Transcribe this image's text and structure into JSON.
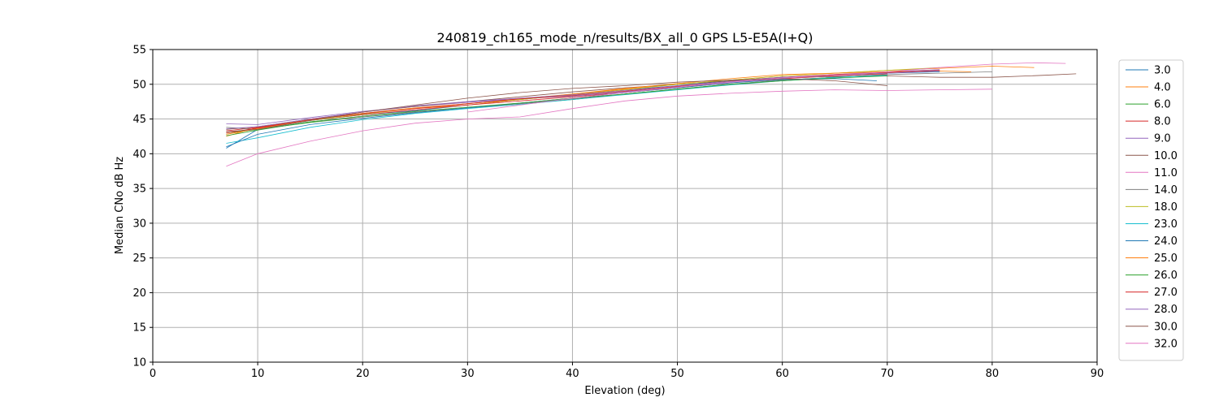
{
  "chart_data": {
    "type": "line",
    "title": "240819_ch165_mode_n/results/BX_all_0 GPS L5-E5A(I+Q)",
    "xlabel": "Elevation (deg)",
    "ylabel": "Median CNo dB Hz",
    "xlim": [
      0,
      90
    ],
    "ylim": [
      10,
      55
    ],
    "xticks": [
      0,
      10,
      20,
      30,
      40,
      50,
      60,
      70,
      80,
      90
    ],
    "yticks": [
      10,
      15,
      20,
      25,
      30,
      35,
      40,
      45,
      50,
      55
    ],
    "grid": true,
    "legend_position": "outside-right",
    "series": [
      {
        "name": "3.0",
        "color": "#1f77b4",
        "x": [
          7,
          10,
          15,
          20,
          25,
          30,
          35,
          40,
          45,
          50,
          55,
          60,
          65,
          70,
          75
        ],
        "y": [
          40.8,
          43.5,
          44.8,
          45.6,
          46.2,
          47.0,
          47.8,
          48.5,
          49.2,
          49.8,
          50.5,
          51.0,
          51.3,
          51.6,
          51.8
        ]
      },
      {
        "name": "4.0",
        "color": "#ff7f0e",
        "x": [
          7,
          10,
          15,
          20,
          25,
          30,
          35,
          40,
          45,
          50,
          55,
          60,
          65,
          70,
          75,
          80,
          84
        ],
        "y": [
          42.5,
          43.8,
          45.0,
          45.8,
          46.5,
          47.0,
          47.8,
          48.6,
          49.3,
          50.0,
          50.6,
          51.2,
          51.6,
          52.0,
          52.3,
          52.6,
          52.4
        ]
      },
      {
        "name": "6.0",
        "color": "#2ca02c",
        "x": [
          7,
          10,
          15,
          20,
          25,
          30,
          35,
          40,
          45,
          50,
          55,
          60,
          65,
          70
        ],
        "y": [
          43.0,
          43.5,
          44.5,
          45.3,
          46.0,
          46.6,
          47.2,
          47.8,
          48.6,
          49.3,
          50.0,
          50.6,
          51.0,
          51.4
        ]
      },
      {
        "name": "8.0",
        "color": "#d62728",
        "x": [
          7,
          10,
          15,
          20,
          25,
          30,
          35,
          40,
          45,
          50,
          55,
          60,
          65,
          70
        ],
        "y": [
          43.3,
          43.8,
          44.8,
          45.6,
          46.3,
          47.0,
          47.6,
          48.2,
          48.8,
          49.5,
          50.2,
          50.8,
          51.2,
          51.5
        ]
      },
      {
        "name": "9.0",
        "color": "#9467bd",
        "x": [
          7,
          10,
          15,
          20,
          25,
          30,
          35,
          40,
          45,
          50,
          55,
          60,
          65,
          70,
          75
        ],
        "y": [
          44.3,
          44.2,
          45.2,
          46.1,
          46.8,
          47.4,
          47.9,
          48.3,
          48.9,
          49.6,
          50.2,
          50.9,
          51.4,
          51.8,
          52.1
        ]
      },
      {
        "name": "10.0",
        "color": "#8c564b",
        "x": [
          7,
          10,
          15,
          20,
          25,
          30,
          35,
          40,
          45,
          50,
          55,
          60,
          65,
          70,
          75,
          80,
          85,
          88
        ],
        "y": [
          43.5,
          43.9,
          45.0,
          46.0,
          46.8,
          47.5,
          48.2,
          48.9,
          49.5,
          50.0,
          50.5,
          51.0,
          51.1,
          51.2,
          51.0,
          51.0,
          51.3,
          51.5
        ]
      },
      {
        "name": "11.0",
        "color": "#e377c2",
        "x": [
          7,
          10,
          15,
          20,
          25,
          30,
          35,
          40,
          45,
          50,
          55,
          60,
          65,
          70,
          75,
          80
        ],
        "y": [
          38.2,
          40.0,
          41.8,
          43.3,
          44.4,
          45.0,
          45.3,
          46.5,
          47.6,
          48.3,
          48.7,
          49.0,
          49.2,
          49.1,
          49.2,
          49.3
        ]
      },
      {
        "name": "14.0",
        "color": "#7f7f7f",
        "x": [
          7,
          10,
          15,
          20,
          25,
          30,
          35,
          40,
          45,
          50,
          55,
          60,
          65,
          70,
          75,
          80
        ],
        "y": [
          43.8,
          43.5,
          44.6,
          45.3,
          46.0,
          46.6,
          47.2,
          47.9,
          48.6,
          49.3,
          50.0,
          50.6,
          51.0,
          51.4,
          51.6,
          51.8
        ]
      },
      {
        "name": "18.0",
        "color": "#bcbd22",
        "x": [
          7,
          10,
          15,
          20,
          25,
          30,
          35,
          40,
          45,
          50,
          55,
          60,
          65,
          70,
          75
        ],
        "y": [
          42.8,
          43.6,
          44.8,
          45.7,
          46.5,
          47.2,
          47.8,
          48.5,
          49.2,
          50.0,
          50.6,
          51.2,
          51.6,
          52.0,
          52.4
        ]
      },
      {
        "name": "23.0",
        "color": "#17becf",
        "x": [
          7,
          10,
          15,
          20,
          25,
          30,
          35,
          40,
          45,
          50,
          55,
          60,
          65,
          70
        ],
        "y": [
          41.5,
          42.3,
          43.8,
          44.9,
          45.8,
          46.5,
          47.1,
          47.8,
          48.5,
          49.2,
          49.9,
          50.5,
          51.0,
          51.3
        ]
      },
      {
        "name": "24.0",
        "color": "#1f77b4",
        "x": [
          7,
          10,
          15,
          20,
          25,
          30,
          35,
          40,
          45,
          50,
          55,
          60,
          65,
          69
        ],
        "y": [
          41.0,
          42.8,
          44.2,
          45.1,
          45.9,
          46.6,
          47.3,
          48.0,
          48.8,
          49.5,
          50.2,
          50.7,
          50.8,
          50.5
        ]
      },
      {
        "name": "25.0",
        "color": "#ff7f0e",
        "x": [
          7,
          10,
          15,
          20,
          25,
          30,
          35,
          40,
          45,
          50,
          55,
          60,
          65,
          70,
          75,
          78
        ],
        "y": [
          42.8,
          43.6,
          44.9,
          45.8,
          46.6,
          47.2,
          47.9,
          48.6,
          49.4,
          50.1,
          50.8,
          51.4,
          51.6,
          51.8,
          51.9,
          51.8
        ]
      },
      {
        "name": "26.0",
        "color": "#2ca02c",
        "x": [
          7,
          10,
          15,
          20,
          25,
          30,
          35,
          40,
          45,
          50,
          55,
          60,
          65,
          70
        ],
        "y": [
          42.6,
          43.4,
          44.6,
          45.4,
          46.1,
          46.7,
          47.3,
          48.0,
          48.6,
          49.3,
          50.0,
          50.5,
          50.9,
          51.2
        ]
      },
      {
        "name": "27.0",
        "color": "#d62728",
        "x": [
          7,
          10,
          15,
          20,
          25,
          30,
          35,
          40,
          45,
          50,
          55,
          60,
          65,
          70,
          75
        ],
        "y": [
          43.0,
          43.7,
          44.9,
          45.8,
          46.5,
          47.2,
          47.9,
          48.4,
          49.0,
          49.7,
          50.4,
          51.0,
          51.4,
          51.7,
          52.0
        ]
      },
      {
        "name": "28.0",
        "color": "#9467bd",
        "x": [
          7,
          10,
          15,
          20,
          25,
          30,
          35,
          40,
          45,
          50,
          55,
          60,
          65,
          70,
          75
        ],
        "y": [
          43.6,
          43.9,
          45.0,
          46.0,
          46.9,
          47.5,
          48.0,
          48.5,
          49.1,
          49.8,
          50.4,
          51.0,
          51.3,
          51.6,
          51.9
        ]
      },
      {
        "name": "30.0",
        "color": "#8c564b",
        "x": [
          7,
          10,
          15,
          20,
          25,
          30,
          35,
          40,
          45,
          50,
          55,
          60,
          65,
          70
        ],
        "y": [
          43.2,
          43.5,
          44.8,
          46.0,
          47.0,
          48.0,
          48.8,
          49.4,
          49.8,
          50.3,
          50.6,
          50.8,
          50.5,
          49.8
        ]
      },
      {
        "name": "32.0",
        "color": "#e377c2",
        "x": [
          30,
          35,
          40,
          45,
          50,
          55,
          60,
          65,
          70,
          75,
          80,
          84,
          87
        ],
        "y": [
          46.0,
          47.0,
          48.0,
          48.8,
          49.6,
          50.3,
          50.9,
          51.3,
          51.8,
          52.4,
          52.9,
          53.1,
          53.0
        ]
      }
    ]
  }
}
